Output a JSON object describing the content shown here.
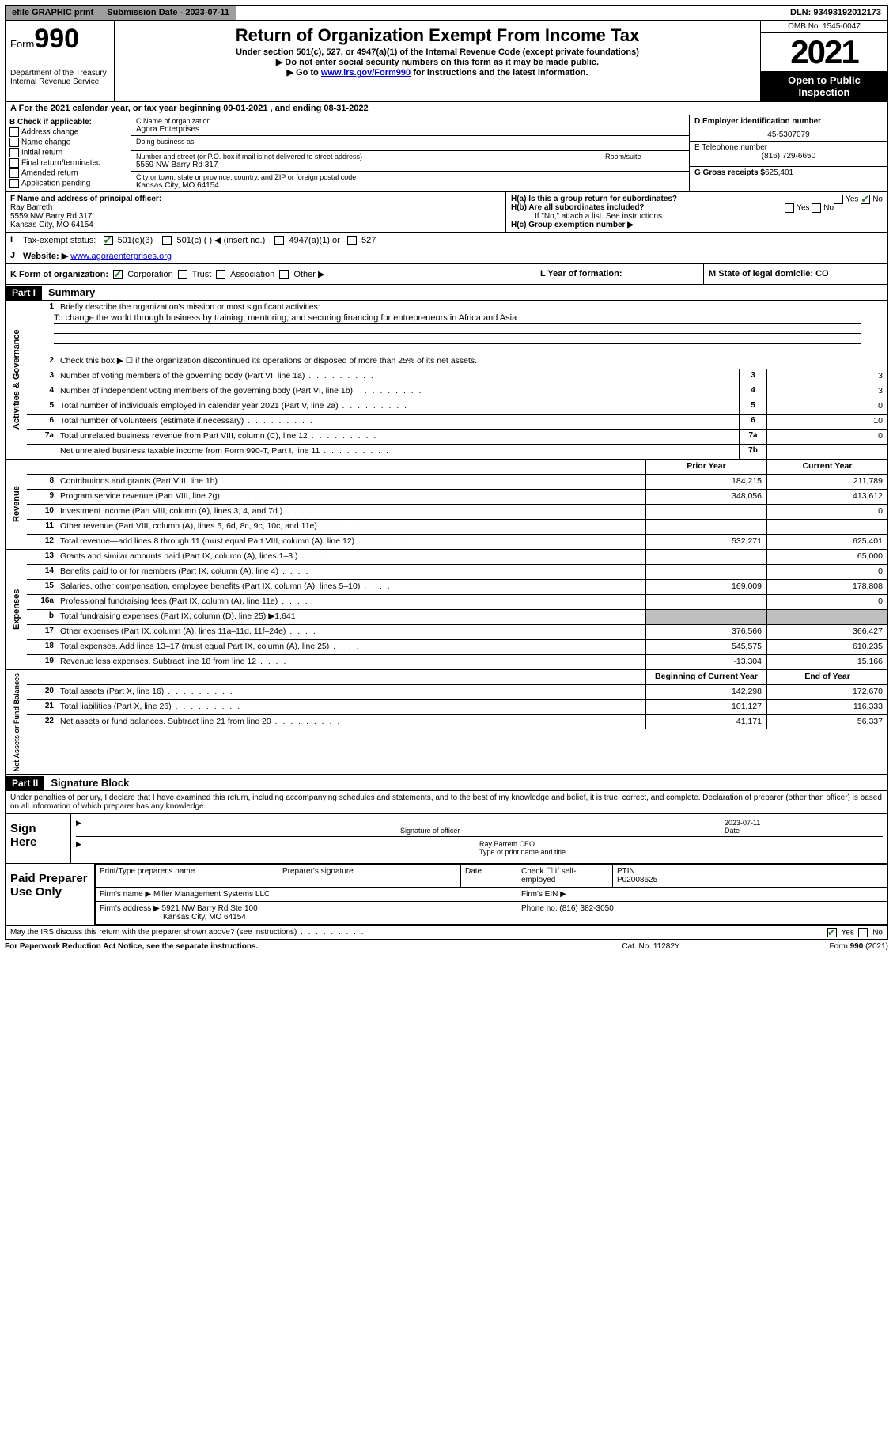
{
  "topbar": {
    "efile": "efile GRAPHIC print",
    "sub_label": "Submission Date - 2023-07-11",
    "dln": "DLN: 93493192012173"
  },
  "header": {
    "form_word": "Form",
    "form_num": "990",
    "dept": "Department of the Treasury Internal Revenue Service",
    "title": "Return of Organization Exempt From Income Tax",
    "sub1": "Under section 501(c), 527, or 4947(a)(1) of the Internal Revenue Code (except private foundations)",
    "sub2": "Do not enter social security numbers on this form as it may be made public.",
    "sub3_a": "Go to ",
    "sub3_link": "www.irs.gov/Form990",
    "sub3_b": " for instructions and the latest information.",
    "omb": "OMB No. 1545-0047",
    "year": "2021",
    "open": "Open to Public Inspection"
  },
  "row_a": "For the 2021 calendar year, or tax year beginning 09-01-2021  , and ending 08-31-2022",
  "section_b": {
    "title": "B Check if applicable:",
    "opts": [
      "Address change",
      "Name change",
      "Initial return",
      "Final return/terminated",
      "Amended return",
      "Application pending"
    ]
  },
  "section_c": {
    "name_lbl": "C Name of organization",
    "name": "Agora Enterprises",
    "dba_lbl": "Doing business as",
    "addr_lbl": "Number and street (or P.O. box if mail is not delivered to street address)",
    "room_lbl": "Room/suite",
    "addr": "5559 NW Barry Rd 317",
    "city_lbl": "City or town, state or province, country, and ZIP or foreign postal code",
    "city": "Kansas City, MO  64154"
  },
  "section_d": {
    "ein_lbl": "D Employer identification number",
    "ein": "45-5307079",
    "phone_lbl": "E Telephone number",
    "phone": "(816) 729-6650",
    "gross_lbl": "G Gross receipts $",
    "gross": "625,401"
  },
  "section_f": {
    "lbl": "F Name and address of principal officer:",
    "name": "Ray Barreth",
    "addr1": "5559 NW Barry Rd 317",
    "addr2": "Kansas City, MO  64154"
  },
  "section_h": {
    "ha": "H(a)  Is this a group return for subordinates?",
    "hb": "H(b)  Are all subordinates included?",
    "hb_note": "If \"No,\" attach a list. See instructions.",
    "hc": "H(c)  Group exemption number ▶",
    "yes": "Yes",
    "no": "No"
  },
  "row_i": {
    "lbl": "Tax-exempt status:",
    "o1": "501(c)(3)",
    "o2": "501(c) (  ) ◀ (insert no.)",
    "o3": "4947(a)(1) or",
    "o4": "527"
  },
  "row_j": {
    "lbl": "Website: ▶",
    "val": "www.agoraenterprises.org"
  },
  "row_k": {
    "lbl": "K Form of organization:",
    "o1": "Corporation",
    "o2": "Trust",
    "o3": "Association",
    "o4": "Other ▶"
  },
  "row_l": "L Year of formation:",
  "row_m": "M State of legal domicile: CO",
  "part1": {
    "hdr": "Part I",
    "title": "Summary"
  },
  "activities": {
    "label": "Activities & Governance",
    "l1": "Briefly describe the organization's mission or most significant activities:",
    "l1_text": "To change the world through business by training, mentoring, and securing financing for entrepreneurs in Africa and Asia",
    "l2": "Check this box ▶ ☐  if the organization discontinued its operations or disposed of more than 25% of its net assets.",
    "l3": "Number of voting members of the governing body (Part VI, line 1a)",
    "l4": "Number of independent voting members of the governing body (Part VI, line 1b)",
    "l5": "Total number of individuals employed in calendar year 2021 (Part V, line 2a)",
    "l6": "Total number of volunteers (estimate if necessary)",
    "l7a": "Total unrelated business revenue from Part VIII, column (C), line 12",
    "l7b": "Net unrelated business taxable income from Form 990-T, Part I, line 11",
    "v3": "3",
    "v4": "3",
    "v5": "0",
    "v6": "10",
    "v7a": "0",
    "v7b": ""
  },
  "cols": {
    "prior": "Prior Year",
    "current": "Current Year",
    "begin": "Beginning of Current Year",
    "end": "End of Year"
  },
  "revenue": {
    "label": "Revenue",
    "rows": [
      {
        "n": "8",
        "d": "Contributions and grants (Part VIII, line 1h)",
        "p": "184,215",
        "c": "211,789"
      },
      {
        "n": "9",
        "d": "Program service revenue (Part VIII, line 2g)",
        "p": "348,056",
        "c": "413,612"
      },
      {
        "n": "10",
        "d": "Investment income (Part VIII, column (A), lines 3, 4, and 7d )",
        "p": "",
        "c": "0"
      },
      {
        "n": "11",
        "d": "Other revenue (Part VIII, column (A), lines 5, 6d, 8c, 9c, 10c, and 11e)",
        "p": "",
        "c": ""
      },
      {
        "n": "12",
        "d": "Total revenue—add lines 8 through 11 (must equal Part VIII, column (A), line 12)",
        "p": "532,271",
        "c": "625,401"
      }
    ]
  },
  "expenses": {
    "label": "Expenses",
    "rows": [
      {
        "n": "13",
        "d": "Grants and similar amounts paid (Part IX, column (A), lines 1–3 )",
        "p": "",
        "c": "65,000"
      },
      {
        "n": "14",
        "d": "Benefits paid to or for members (Part IX, column (A), line 4)",
        "p": "",
        "c": "0"
      },
      {
        "n": "15",
        "d": "Salaries, other compensation, employee benefits (Part IX, column (A), lines 5–10)",
        "p": "169,009",
        "c": "178,808"
      },
      {
        "n": "16a",
        "d": "Professional fundraising fees (Part IX, column (A), line 11e)",
        "p": "",
        "c": "0"
      },
      {
        "n": "b",
        "d": "Total fundraising expenses (Part IX, column (D), line 25) ▶1,641",
        "shade": true
      },
      {
        "n": "17",
        "d": "Other expenses (Part IX, column (A), lines 11a–11d, 11f–24e)",
        "p": "376,566",
        "c": "366,427"
      },
      {
        "n": "18",
        "d": "Total expenses. Add lines 13–17 (must equal Part IX, column (A), line 25)",
        "p": "545,575",
        "c": "610,235"
      },
      {
        "n": "19",
        "d": "Revenue less expenses. Subtract line 18 from line 12",
        "p": "-13,304",
        "c": "15,166"
      }
    ]
  },
  "netassets": {
    "label": "Net Assets or Fund Balances",
    "rows": [
      {
        "n": "20",
        "d": "Total assets (Part X, line 16)",
        "p": "142,298",
        "c": "172,670"
      },
      {
        "n": "21",
        "d": "Total liabilities (Part X, line 26)",
        "p": "101,127",
        "c": "116,333"
      },
      {
        "n": "22",
        "d": "Net assets or fund balances. Subtract line 21 from line 20",
        "p": "41,171",
        "c": "56,337"
      }
    ]
  },
  "part2": {
    "hdr": "Part II",
    "title": "Signature Block"
  },
  "sig": {
    "declare": "Under penalties of perjury, I declare that I have examined this return, including accompanying schedules and statements, and to the best of my knowledge and belief, it is true, correct, and complete. Declaration of preparer (other than officer) is based on all information of which preparer has any knowledge.",
    "sign_here": "Sign Here",
    "sig_officer": "Signature of officer",
    "date": "Date",
    "date_val": "2023-07-11",
    "name_title": "Ray Barreth CEO",
    "name_title_lbl": "Type or print name and title",
    "paid": "Paid Preparer Use Only",
    "prep_name": "Print/Type preparer's name",
    "prep_sig": "Preparer's signature",
    "prep_date": "Date",
    "check_if": "Check ☐ if self-employed",
    "ptin_lbl": "PTIN",
    "ptin": "P02008625",
    "firm_name_lbl": "Firm's name   ▶",
    "firm_name": "Miller Management Systems LLC",
    "firm_ein_lbl": "Firm's EIN ▶",
    "firm_addr_lbl": "Firm's address ▶",
    "firm_addr1": "5921 NW Barry Rd Ste 100",
    "firm_addr2": "Kansas City, MO  64154",
    "phone_lbl": "Phone no.",
    "phone": "(816) 382-3050",
    "discuss": "May the IRS discuss this return with the preparer shown above? (see instructions)"
  },
  "footer": {
    "l": "For Paperwork Reduction Act Notice, see the separate instructions.",
    "m": "Cat. No. 11282Y",
    "r": "Form 990 (2021)"
  }
}
